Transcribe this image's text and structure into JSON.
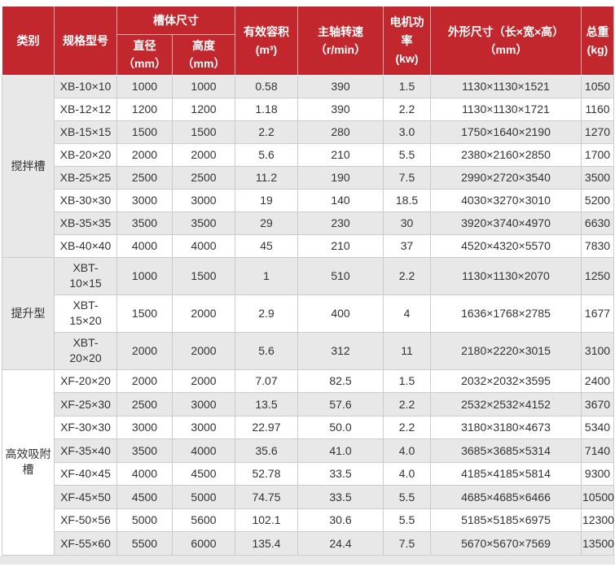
{
  "table": {
    "header": {
      "category": "类别",
      "model": "规格型号",
      "tank_size": "槽体尺寸",
      "diameter": "直径\n（mm）",
      "height": "高度\n（mm）",
      "volume": "有效容积\n(m³)",
      "speed": "主轴转速\n（r/min）",
      "power": "电机功率\n(kw)",
      "dimensions": "外形尺寸（长×宽×高）\n（mm）",
      "weight": "总重\n(kg)"
    },
    "groups": [
      {
        "category": "搅拌槽",
        "rows": [
          {
            "model": "XB-10×10",
            "diameter": "1000",
            "height": "1000",
            "volume": "0.58",
            "speed": "390",
            "power": "1.5",
            "dimensions": "1130×1130×1521",
            "weight": "1050"
          },
          {
            "model": "XB-12×12",
            "diameter": "1200",
            "height": "1200",
            "volume": "1.18",
            "speed": "390",
            "power": "2.2",
            "dimensions": "1130×1130×1721",
            "weight": "1160"
          },
          {
            "model": "XB-15×15",
            "diameter": "1500",
            "height": "1500",
            "volume": "2.2",
            "speed": "280",
            "power": "3.0",
            "dimensions": "1750×1640×2190",
            "weight": "1270"
          },
          {
            "model": "XB-20×20",
            "diameter": "2000",
            "height": "2000",
            "volume": "5.6",
            "speed": "210",
            "power": "5.5",
            "dimensions": "2380×2160×2850",
            "weight": "1700"
          },
          {
            "model": "XB-25×25",
            "diameter": "2500",
            "height": "2500",
            "volume": "11.2",
            "speed": "190",
            "power": "7.5",
            "dimensions": "2990×2720×3540",
            "weight": "3500"
          },
          {
            "model": "XB-30×30",
            "diameter": "3000",
            "height": "3000",
            "volume": "19",
            "speed": "140",
            "power": "18.5",
            "dimensions": "4030×3270×3010",
            "weight": "5200"
          },
          {
            "model": "XB-35×35",
            "diameter": "3500",
            "height": "3500",
            "volume": "29",
            "speed": "230",
            "power": "30",
            "dimensions": "3920×3740×4970",
            "weight": "6630"
          },
          {
            "model": "XB-40×40",
            "diameter": "4000",
            "height": "4000",
            "volume": "45",
            "speed": "210",
            "power": "37",
            "dimensions": "4520×4320×5570",
            "weight": "7830"
          }
        ]
      },
      {
        "category": "提升型",
        "rows": [
          {
            "model": "XBT-\n10×15",
            "diameter": "1000",
            "height": "1500",
            "volume": "1",
            "speed": "510",
            "power": "2.2",
            "dimensions": "1130×1130×2070",
            "weight": "1250"
          },
          {
            "model": "XBT-\n15×20",
            "diameter": "1500",
            "height": "2000",
            "volume": "2.9",
            "speed": "400",
            "power": "4",
            "dimensions": "1636×1768×2785",
            "weight": "1677"
          },
          {
            "model": "XBT-\n20×20",
            "diameter": "2000",
            "height": "2000",
            "volume": "5.6",
            "speed": "312",
            "power": "11",
            "dimensions": "2180×2220×3015",
            "weight": "3100"
          }
        ]
      },
      {
        "category": "高效吸附槽",
        "rows": [
          {
            "model": "XF-20×20",
            "diameter": "2000",
            "height": "2000",
            "volume": "7.07",
            "speed": "82.5",
            "power": "1.5",
            "dimensions": "2032×2032×3595",
            "weight": "2400"
          },
          {
            "model": "XF-25×30",
            "diameter": "2500",
            "height": "3000",
            "volume": "13.5",
            "speed": "57.6",
            "power": "2.2",
            "dimensions": "2532×2532×4152",
            "weight": "3670"
          },
          {
            "model": "XF-30×30",
            "diameter": "3000",
            "height": "3000",
            "volume": "22.97",
            "speed": "50.0",
            "power": "2.2",
            "dimensions": "3180×3180×4673",
            "weight": "5340"
          },
          {
            "model": "XF-35×40",
            "diameter": "3500",
            "height": "4000",
            "volume": "35.6",
            "speed": "41.0",
            "power": "4.0",
            "dimensions": "3685×3685×5314",
            "weight": "7140"
          },
          {
            "model": "XF-40×45",
            "diameter": "4000",
            "height": "4500",
            "volume": "52.78",
            "speed": "33.5",
            "power": "4.0",
            "dimensions": "4185×4185×5814",
            "weight": "9300"
          },
          {
            "model": "XF-45×50",
            "diameter": "4500",
            "height": "5000",
            "volume": "74.75",
            "speed": "33.5",
            "power": "5.5",
            "dimensions": "4685×4685×6466",
            "weight": "10500"
          },
          {
            "model": "XF-50×56",
            "diameter": "5000",
            "height": "5600",
            "volume": "102.1",
            "speed": "30.6",
            "power": "5.5",
            "dimensions": "5185×5185×6975",
            "weight": "12300"
          },
          {
            "model": "XF-55×60",
            "diameter": "5500",
            "height": "6000",
            "volume": "135.4",
            "speed": "24.4",
            "power": "7.5",
            "dimensions": "5670×5670×7569",
            "weight": "13500"
          }
        ]
      }
    ]
  },
  "colors": {
    "header_bg": "#c1272d",
    "header_text": "#ffffff",
    "row_stripe": "#e8e8e8",
    "row_white": "#ffffff",
    "cell_border": "#cccccc",
    "body_text": "#333333",
    "page_strip": "#e8e8e8"
  }
}
